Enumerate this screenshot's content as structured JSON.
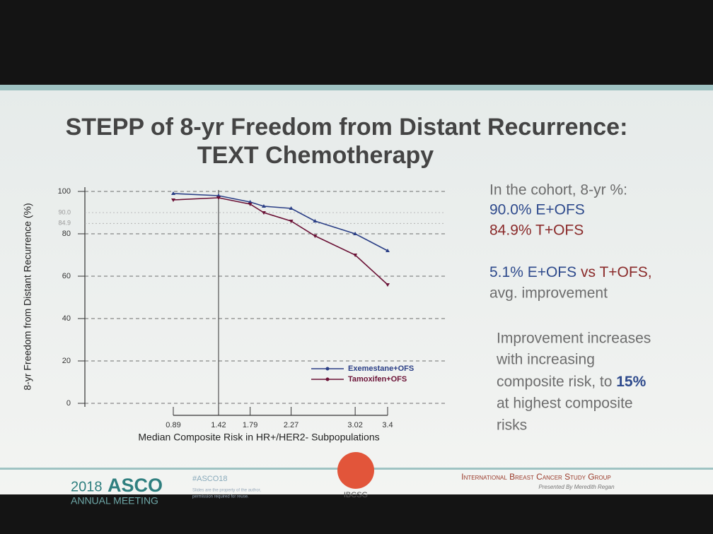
{
  "slide": {
    "title_lines": [
      "STEPP of 8-yr Freedom from Distant Recurrence:",
      "TEXT Chemotherapy"
    ],
    "notes": {
      "cohort_heading": "In the cohort, 8-yr %:",
      "e_rate": "90.0% E+OFS",
      "t_rate": "84.9% T+OFS",
      "diff_e": "5.1% E+OFS",
      "diff_t": "vs T+OFS,",
      "diff_rest": "avg. improvement",
      "improvement_lines": [
        "Improvement increases",
        "with increasing",
        "composite risk, to",
        "at highest composite",
        "risks"
      ],
      "improvement_max": "15%"
    },
    "footer": {
      "asco_year": "2018",
      "asco": "ASCO",
      "meeting": "ANNUAL MEETING",
      "hashtag": "#ASCO18",
      "fine_print": [
        "Slides are the property of the author,",
        "permission required for reuse."
      ],
      "logo": "IBCSG",
      "group": "International Breast Cancer Study Group",
      "presenter": "Presented By Meredith Regan"
    }
  },
  "chart_data": {
    "type": "line",
    "x_label": "Median Composite Risk in HR+/HER2- Subpopulations",
    "y_label": "8-yr Freedom from Distant Recurrence (%)",
    "x": [
      0.89,
      1.42,
      1.79,
      1.95,
      2.27,
      2.55,
      3.02,
      3.4
    ],
    "series": [
      {
        "name": "Exemestane+OFS",
        "color": "#2b3f86",
        "values": [
          99,
          98,
          95,
          93,
          92,
          86,
          80,
          72
        ]
      },
      {
        "name": "Tamoxifen+OFS",
        "color": "#6b1236",
        "values": [
          96,
          97,
          94,
          90,
          86,
          79,
          70,
          56
        ]
      }
    ],
    "xlim": [
      0.89,
      3.4
    ],
    "xticks": [
      0.89,
      1.42,
      1.79,
      2.27,
      3.02,
      3.4
    ],
    "ylim": [
      0,
      100
    ],
    "yticks": [
      0,
      20,
      40,
      60,
      80,
      100
    ],
    "reference_lines": [
      {
        "value": 90,
        "label": "90.0"
      },
      {
        "value": 84.9,
        "label": "84.9"
      }
    ],
    "vline": 1.42,
    "grid": true
  }
}
